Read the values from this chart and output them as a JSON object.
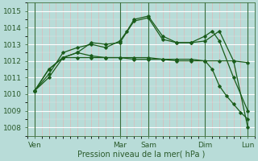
{
  "background_color": "#b8dcd8",
  "plot_bg_color": "#b8dcd8",
  "line_color": "#1a5c1a",
  "xlabel": "Pression niveau de la mer( hPa )",
  "ylim": [
    1007.5,
    1015.5
  ],
  "yticks": [
    1008,
    1009,
    1010,
    1011,
    1012,
    1013,
    1014,
    1015
  ],
  "xlim": [
    0,
    32
  ],
  "xtick_labels": [
    "Ven",
    "Mar",
    "Sam",
    "Dim",
    "Lun"
  ],
  "xtick_positions": [
    1,
    13,
    17,
    25,
    31
  ],
  "vline_positions": [
    1,
    13,
    17,
    25,
    31
  ],
  "series": [
    {
      "x": [
        1,
        3,
        5,
        7,
        9,
        11,
        13,
        15,
        17,
        19,
        21,
        23,
        25,
        27,
        29,
        31
      ],
      "y": [
        1010.2,
        1011.5,
        1012.2,
        1012.2,
        1012.2,
        1012.2,
        1012.2,
        1012.1,
        1012.1,
        1012.1,
        1012.0,
        1012.0,
        1012.0,
        1012.0,
        1012.0,
        1011.9
      ]
    },
    {
      "x": [
        1,
        3,
        5,
        7,
        9,
        11,
        13,
        15,
        17,
        19,
        21,
        23,
        25,
        27,
        29,
        31
      ],
      "y": [
        1010.2,
        1011.5,
        1012.2,
        1012.5,
        1013.1,
        1013.0,
        1013.1,
        1014.4,
        1014.6,
        1013.3,
        1013.1,
        1013.1,
        1013.2,
        1013.8,
        1012.0,
        1008.0
      ]
    },
    {
      "x": [
        1,
        3,
        5,
        7,
        9,
        11,
        13,
        14,
        15,
        17,
        19,
        21,
        23,
        25,
        26,
        27,
        29,
        31
      ],
      "y": [
        1010.2,
        1011.2,
        1012.5,
        1012.8,
        1013.0,
        1012.8,
        1013.2,
        1013.8,
        1014.5,
        1014.7,
        1013.5,
        1013.1,
        1013.1,
        1013.5,
        1013.8,
        1013.2,
        1011.0,
        1009.0
      ]
    },
    {
      "x": [
        1,
        3,
        5,
        7,
        9,
        11,
        13,
        15,
        17,
        19,
        21,
        23,
        25,
        26,
        27,
        28,
        29,
        30,
        31
      ],
      "y": [
        1010.2,
        1011.0,
        1012.2,
        1012.5,
        1012.3,
        1012.2,
        1012.2,
        1012.2,
        1012.2,
        1012.1,
        1012.1,
        1012.1,
        1012.0,
        1011.5,
        1010.5,
        1009.9,
        1009.4,
        1008.9,
        1008.5
      ]
    }
  ]
}
